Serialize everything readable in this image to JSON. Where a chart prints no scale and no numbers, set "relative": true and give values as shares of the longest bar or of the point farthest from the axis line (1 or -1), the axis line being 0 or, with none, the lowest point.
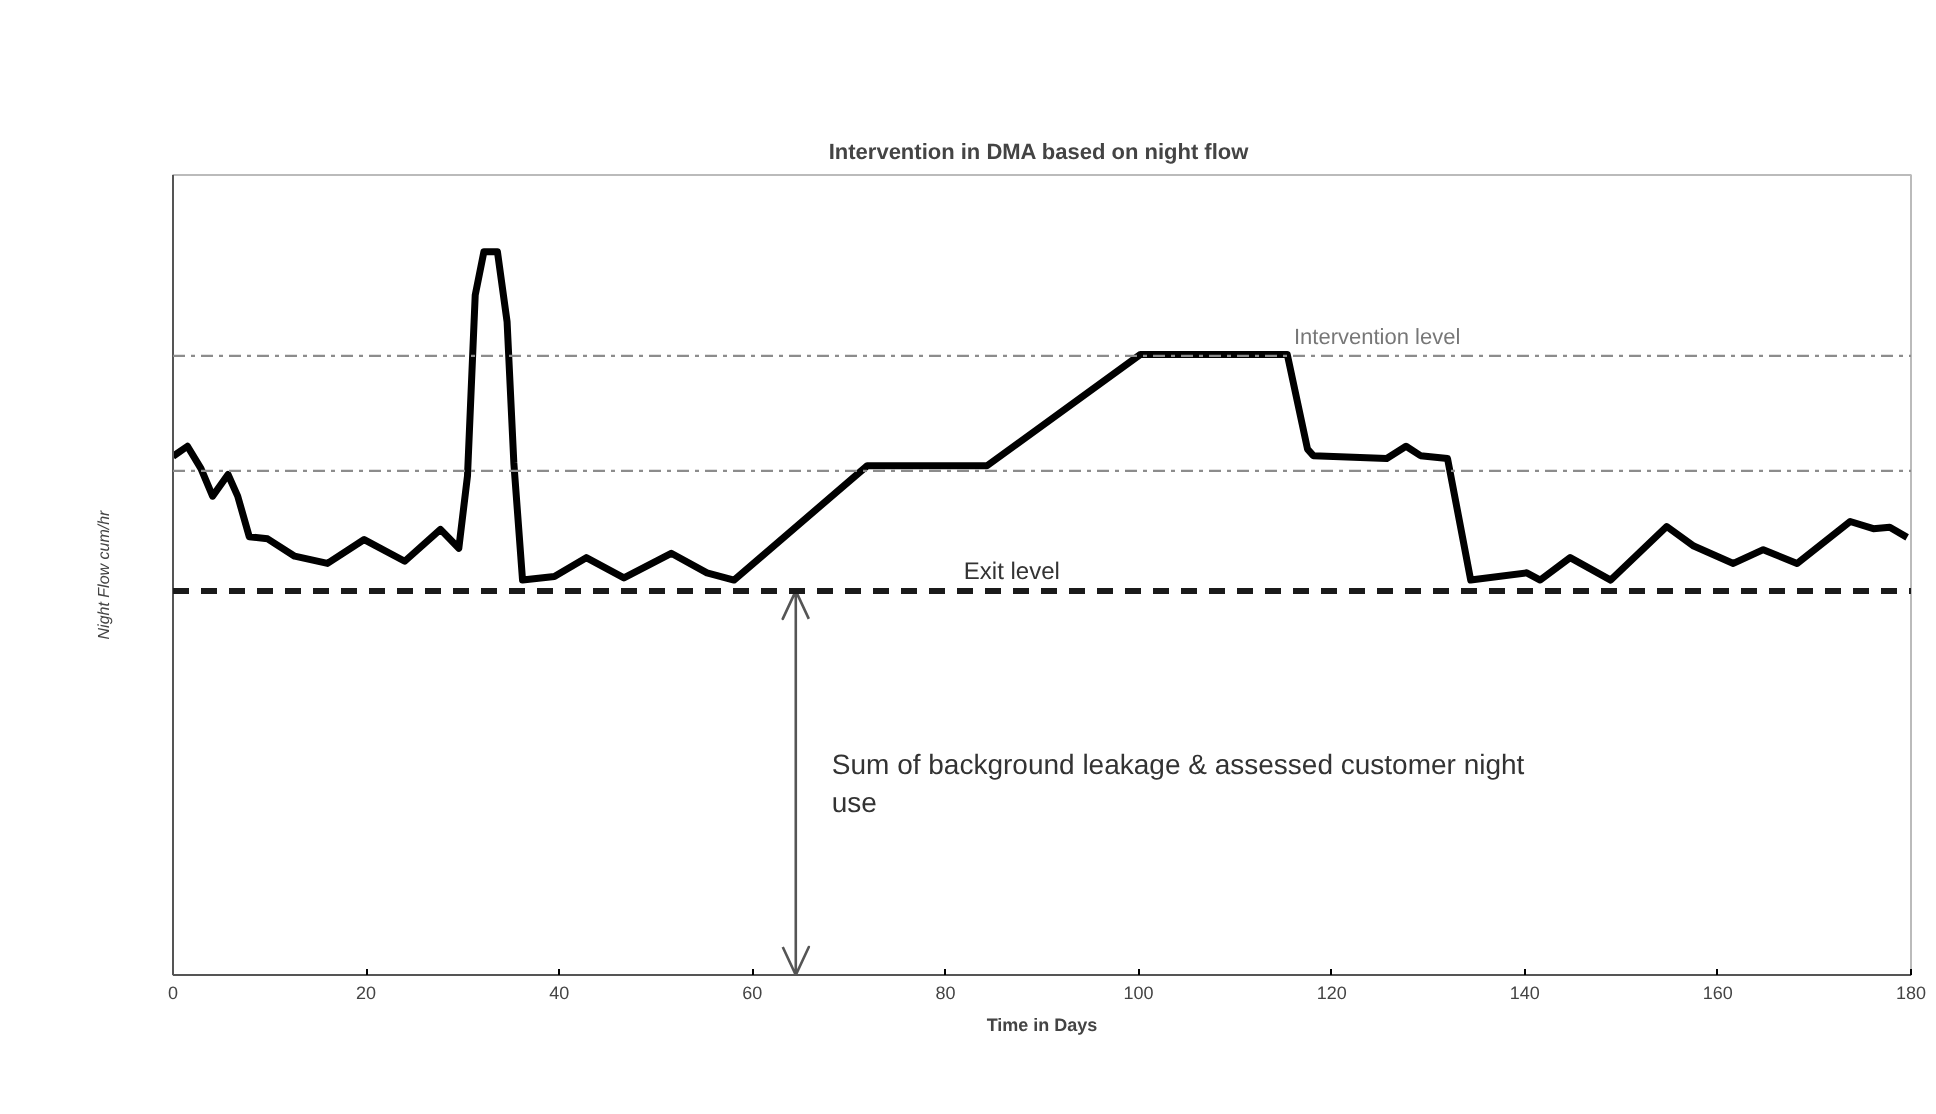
{
  "chart_data": {
    "type": "line",
    "title": "Intervention  in DMA based on night flow",
    "xlabel": "Time in Days",
    "ylabel": "Night Flow cum/hr",
    "relative": true,
    "xlim": [
      0,
      180
    ],
    "xticks": [
      0,
      20,
      40,
      60,
      80,
      100,
      120,
      140,
      160,
      180
    ],
    "grid": false,
    "marker": "none",
    "line_style": "solid",
    "x": [
      0,
      1.5,
      2.9,
      4.1,
      5.7,
      6.7,
      7.9,
      9.8,
      12.6,
      16,
      19.8,
      24,
      27.7,
      29.6,
      30.5,
      31.3,
      32.2,
      33.6,
      34.6,
      35.3,
      36.2,
      39.5,
      42.8,
      46.7,
      51.6,
      55.3,
      58.1,
      71.9,
      84.3,
      100.2,
      115.4,
      117.5,
      118.1,
      125.7,
      127.7,
      129.2,
      132,
      134.4,
      140.2,
      141.6,
      144.7,
      148.9,
      154.7,
      157.5,
      161.6,
      164.7,
      168.2,
      173.7,
      176.1,
      177.8,
      179.6
    ],
    "series": [
      {
        "color": "#000000",
        "values": [
          0.717,
          0.731,
          0.7,
          0.662,
          0.692,
          0.662,
          0.606,
          0.603,
          0.579,
          0.569,
          0.602,
          0.572,
          0.616,
          0.59,
          0.69,
          0.94,
          1.0,
          1.0,
          0.903,
          0.708,
          0.546,
          0.551,
          0.577,
          0.549,
          0.583,
          0.556,
          0.546,
          0.704,
          0.704,
          0.858,
          0.858,
          0.727,
          0.718,
          0.714,
          0.731,
          0.718,
          0.714,
          0.546,
          0.556,
          0.546,
          0.577,
          0.546,
          0.62,
          0.593,
          0.569,
          0.588,
          0.569,
          0.627,
          0.617,
          0.619,
          0.605
        ]
      }
    ],
    "ref_lines": [
      {
        "axis": "y",
        "value": 0.856,
        "label": "Intervention level",
        "color": "#8c8c8c",
        "line_style": "dotted"
      },
      {
        "axis": "y",
        "value": 0.697,
        "label": null,
        "color": "#8c8c8c",
        "line_style": "dotted"
      },
      {
        "axis": "y",
        "value": 0.531,
        "label": "Exit level",
        "color": "#1a1a1a",
        "line_style": "dashed"
      },
      {
        "axis": "x",
        "value": 64.5,
        "label": "Sum of background leakage & assessed customer night use",
        "color": "#555555",
        "line_style": "solid"
      }
    ]
  }
}
